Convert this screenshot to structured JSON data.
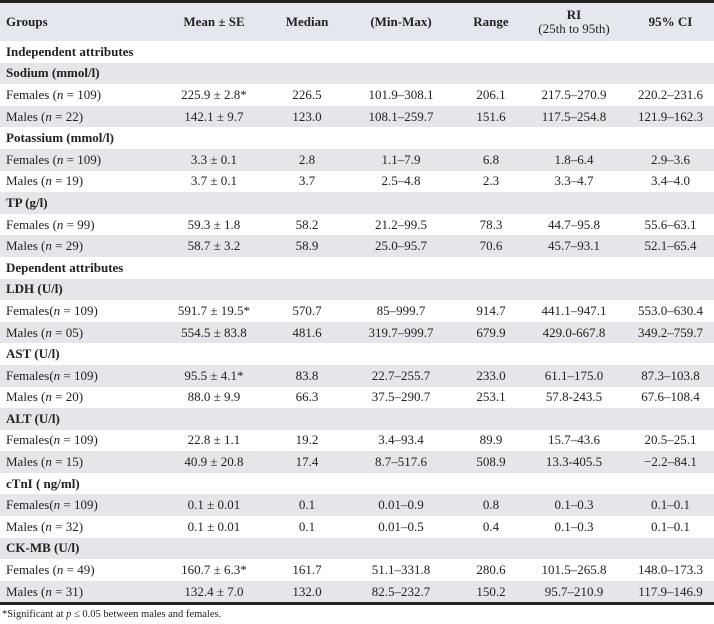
{
  "table": {
    "headers": [
      "Groups",
      "Mean ± SE",
      "Median",
      "(Min-Max)",
      "Range",
      "RI",
      "(25th to 95th)",
      "95% CI"
    ],
    "rows": [
      {
        "type": "section",
        "label": "Independent attributes"
      },
      {
        "type": "section",
        "label": "Sodium (mmol/l)"
      },
      {
        "type": "data",
        "group": "Females (",
        "n": "109",
        "mean": "225.9 ± 2.8*",
        "median": "226.5",
        "minmax": "101.9–308.1",
        "range": "206.1",
        "ri": "217.5–270.9",
        "ci": "220.2–231.6"
      },
      {
        "type": "data",
        "group": "Males (",
        "n": "22",
        "mean": "142.1 ± 9.7",
        "median": "123.0",
        "minmax": "108.1–259.7",
        "range": "151.6",
        "ri": "117.5–254.8",
        "ci": "121.9–162.3"
      },
      {
        "type": "section",
        "label": "Potassium (mmol/l)"
      },
      {
        "type": "data",
        "group": "Females (",
        "n": "109",
        "mean": "3.3 ± 0.1",
        "median": "2.8",
        "minmax": "1.1–7.9",
        "range": "6.8",
        "ri": "1.8–6.4",
        "ci": "2.9–3.6"
      },
      {
        "type": "data",
        "group": "Males (",
        "n": "19",
        "mean": "3.7 ± 0.1",
        "median": "3.7",
        "minmax": "2.5–4.8",
        "range": "2.3",
        "ri": "3.3–4.7",
        "ci": "3.4–4.0"
      },
      {
        "type": "section",
        "label": "TP (g/l)"
      },
      {
        "type": "data",
        "group": "Females (",
        "n": "99",
        "mean": "59.3 ± 1.8",
        "median": "58.2",
        "minmax": "21.2–99.5",
        "range": "78.3",
        "ri": "44.7–95.8",
        "ci": "55.6–63.1"
      },
      {
        "type": "data",
        "group": "Males (",
        "n": "29",
        "mean": "58.7 ± 3.2",
        "median": "58.9",
        "minmax": "25.0–95.7",
        "range": "70.6",
        "ri": "45.7–93.1",
        "ci": "52.1–65.4"
      },
      {
        "type": "section",
        "label": "Dependent attributes"
      },
      {
        "type": "section",
        "label": "LDH (U/l)"
      },
      {
        "type": "data",
        "group": "Females(",
        "n": "109",
        "mean": "591.7 ± 19.5*",
        "median": "570.7",
        "minmax": "85–999.7",
        "range": "914.7",
        "ri": "441.1–947.1",
        "ci": "553.0–630.4"
      },
      {
        "type": "data",
        "group": "Males (",
        "n": "05",
        "mean": "554.5 ± 83.8",
        "median": "481.6",
        "minmax": "319.7–999.7",
        "range": "679.9",
        "ri": "429.0-667.8",
        "ci": "349.2–759.7"
      },
      {
        "type": "section",
        "label": "AST (U/l)"
      },
      {
        "type": "data",
        "group": "Females(",
        "n": "109",
        "mean": "95.5 ± 4.1*",
        "median": "83.8",
        "minmax": "22.7–255.7",
        "range": "233.0",
        "ri": "61.1–175.0",
        "ci": "87.3–103.8"
      },
      {
        "type": "data",
        "group": "Males (",
        "n": "20",
        "mean": "88.0 ± 9.9",
        "median": "66.3",
        "minmax": "37.5–290.7",
        "range": "253.1",
        "ri": "57.8-243.5",
        "ci": "67.6–108.4"
      },
      {
        "type": "section",
        "label": "ALT (U/l)"
      },
      {
        "type": "data",
        "group": "Females(",
        "n": "109",
        "mean": "22.8 ± 1.1",
        "median": "19.2",
        "minmax": "3.4–93.4",
        "range": "89.9",
        "ri": "15.7–43.6",
        "ci": "20.5–25.1"
      },
      {
        "type": "data",
        "group": "Males (",
        "n": "15",
        "mean": "40.9 ± 20.8",
        "median": "17.4",
        "minmax": "8.7–517.6",
        "range": "508.9",
        "ri": "13.3-405.5",
        "ci": "−2.2–84.1"
      },
      {
        "type": "section",
        "label": "cTnI ( ng/ml)"
      },
      {
        "type": "data",
        "group": "Females(",
        "n": "109",
        "mean": "0.1 ± 0.01",
        "median": "0.1",
        "minmax": "0.01–0.9",
        "range": "0.8",
        "ri": "0.1–0.3",
        "ci": "0.1–0.1"
      },
      {
        "type": "data",
        "group": "Males (",
        "n": "32",
        "mean": "0.1 ± 0.01",
        "median": "0.1",
        "minmax": "0.01–0.5",
        "range": "0.4",
        "ri": "0.1–0.3",
        "ci": "0.1–0.1"
      },
      {
        "type": "section",
        "label": "CK-MB (U/l)"
      },
      {
        "type": "data",
        "group": "Females (",
        "n": "49",
        "mean": "160.7 ± 6.3*",
        "median": "161.7",
        "minmax": "51.1–331.8",
        "range": "280.6",
        "ri": "101.5–265.8",
        "ci": "148.0–173.3"
      },
      {
        "type": "data",
        "group": "Males (",
        "n": "31",
        "mean": "132.4 ± 7.0",
        "median": "132.0",
        "minmax": "82.5–232.7",
        "range": "150.2",
        "ri": "95.7–210.9",
        "ci": "117.9–146.9"
      }
    ]
  },
  "footnote": {
    "prefix": "*Significant at ",
    "p": "p",
    "rest": " ≤ 0.05 between males and females."
  },
  "colors": {
    "header_bg": "#e4e8ee",
    "stripe_bg": "#e4e6ea",
    "rule": "#222222"
  }
}
